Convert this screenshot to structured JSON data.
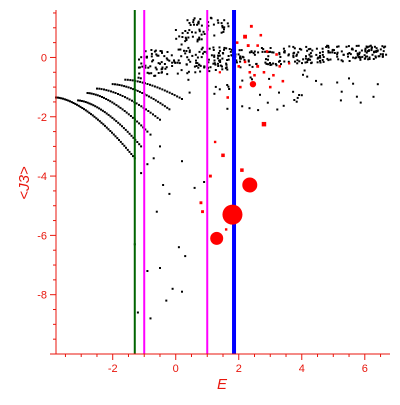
{
  "chart_data": {
    "type": "scatter",
    "title": "",
    "xlabel": "E",
    "ylabel": "<J3>",
    "xlim": [
      -3.8,
      6.8
    ],
    "ylim": [
      -10,
      1.6
    ],
    "x_ticks": [
      -2,
      0,
      2,
      4,
      6
    ],
    "y_ticks": [
      0,
      -2,
      -4,
      -6,
      -8
    ],
    "grid": false,
    "colors": {
      "axis": "#e8160c",
      "points": "#000000",
      "markers": "#ff0000",
      "line_green": "#006400",
      "line_magenta": "#ff00ff",
      "line_blue": "#0000ff"
    },
    "vertical_lines": [
      {
        "x": -1.3,
        "color": "#006400",
        "style": "thin"
      },
      {
        "x": -1.0,
        "color": "#ff00ff",
        "style": "thin"
      },
      {
        "x": 1.0,
        "color": "#ff00ff",
        "style": "thin"
      },
      {
        "x": 1.85,
        "color": "#0000ff",
        "style": "thick"
      }
    ],
    "black_series": [
      {
        "shape": "curve",
        "x_range": [
          -3.8,
          -1.3
        ],
        "y_start": -1.35,
        "y_end": -3.4,
        "count": 46
      },
      {
        "shape": "curve",
        "x_range": [
          -3.1,
          -1.1
        ],
        "y_start": -1.45,
        "y_end": -3.0,
        "count": 34
      },
      {
        "shape": "curve",
        "x_range": [
          -2.8,
          -0.9
        ],
        "y_start": -1.2,
        "y_end": -2.5,
        "count": 30
      },
      {
        "shape": "curve",
        "x_range": [
          -2.5,
          -0.5
        ],
        "y_start": -1.05,
        "y_end": -2.1,
        "count": 28
      },
      {
        "shape": "curve",
        "x_range": [
          -2.0,
          -0.2
        ],
        "y_start": -0.9,
        "y_end": -1.75,
        "count": 26
      },
      {
        "shape": "curve",
        "x_range": [
          -1.6,
          0.2
        ],
        "y_start": -0.75,
        "y_end": -1.4,
        "count": 24
      },
      {
        "shape": "band",
        "x_range": [
          -1.2,
          6.7
        ],
        "y_start": -0.7,
        "y_end": 0.4,
        "count": 380
      },
      {
        "shape": "band",
        "x_range": [
          0.0,
          1.7
        ],
        "y_start": 0.2,
        "y_end": 1.35,
        "count": 60
      },
      {
        "shape": "scatter",
        "x_range": [
          0.2,
          6.5
        ],
        "y_start": -1.8,
        "y_end": -0.4,
        "count": 45
      }
    ],
    "black_points": [
      [
        -1.3,
        -6.3
      ],
      [
        -1.2,
        -8.6
      ],
      [
        -0.9,
        -7.2
      ],
      [
        -0.8,
        -8.8
      ],
      [
        -0.5,
        -7.1
      ],
      [
        -0.3,
        -8.2
      ],
      [
        -0.2,
        -4.6
      ],
      [
        -0.1,
        -7.8
      ],
      [
        0.1,
        -6.4
      ],
      [
        0.2,
        -7.9
      ],
      [
        0.3,
        -6.7
      ],
      [
        -0.6,
        -5.2
      ],
      [
        -0.4,
        -4.3
      ],
      [
        -0.7,
        -3.4
      ],
      [
        -0.5,
        -3.0
      ],
      [
        -0.8,
        -2.6
      ],
      [
        0.6,
        -4.4
      ],
      [
        0.9,
        -4.2
      ],
      [
        -1.1,
        -3.9
      ],
      [
        -0.9,
        -3.6
      ],
      [
        0.2,
        -3.5
      ]
    ],
    "red_markers": [
      {
        "x": 1.8,
        "y": -5.3,
        "size": 10
      },
      {
        "x": 2.35,
        "y": -4.3,
        "size": 7.5
      },
      {
        "x": 1.3,
        "y": -6.1,
        "size": 6.5
      },
      {
        "x": 2.45,
        "y": -0.9,
        "size": 3.2
      },
      {
        "x": 2.8,
        "y": -2.25,
        "size": 2.8
      },
      {
        "x": 1.5,
        "y": -3.3,
        "size": 2.2
      },
      {
        "x": 2.1,
        "y": -3.8,
        "size": 2.2
      },
      {
        "x": 1.1,
        "y": -4.0,
        "size": 1.8
      },
      {
        "x": 0.8,
        "y": -4.9,
        "size": 1.8
      },
      {
        "x": 0.85,
        "y": -5.2,
        "size": 1.8
      },
      {
        "x": 1.25,
        "y": -2.85,
        "size": 1.5
      },
      {
        "x": 1.6,
        "y": -5.8,
        "size": 1.5
      },
      {
        "x": 1.65,
        "y": -1.35,
        "size": 1.6
      },
      {
        "x": 2.2,
        "y": 0.7,
        "size": 2.4
      },
      {
        "x": 2.3,
        "y": 0.4,
        "size": 1.8
      },
      {
        "x": 2.4,
        "y": 1.05,
        "size": 1.8
      },
      {
        "x": 2.6,
        "y": -0.3,
        "size": 1.8
      },
      {
        "x": 2.8,
        "y": -0.5,
        "size": 1.6
      },
      {
        "x": 2.9,
        "y": 0.2,
        "size": 1.6
      },
      {
        "x": 3.1,
        "y": -0.6,
        "size": 1.6
      },
      {
        "x": 3.3,
        "y": -0.3,
        "size": 1.6
      },
      {
        "x": 3.0,
        "y": -1.0,
        "size": 1.6
      },
      {
        "x": 3.4,
        "y": -0.8,
        "size": 1.6
      },
      {
        "x": 2.05,
        "y": -1.0,
        "size": 1.6
      },
      {
        "x": 1.95,
        "y": 0.5,
        "size": 1.6
      },
      {
        "x": 2.7,
        "y": 0.75,
        "size": 1.6
      },
      {
        "x": 3.2,
        "y": 0.1,
        "size": 1.6
      },
      {
        "x": 2.5,
        "y": -0.6,
        "size": 1.6
      },
      {
        "x": 1.4,
        "y": -0.5,
        "size": 1.4
      },
      {
        "x": 2.0,
        "y": -0.3,
        "size": 1.6
      },
      {
        "x": 2.2,
        "y": -0.15,
        "size": 1.6
      },
      {
        "x": 2.6,
        "y": 0.4,
        "size": 1.6
      },
      {
        "x": 3.6,
        "y": -0.2,
        "size": 1.4
      },
      {
        "x": 2.35,
        "y": -0.5,
        "size": 1.6
      }
    ]
  }
}
